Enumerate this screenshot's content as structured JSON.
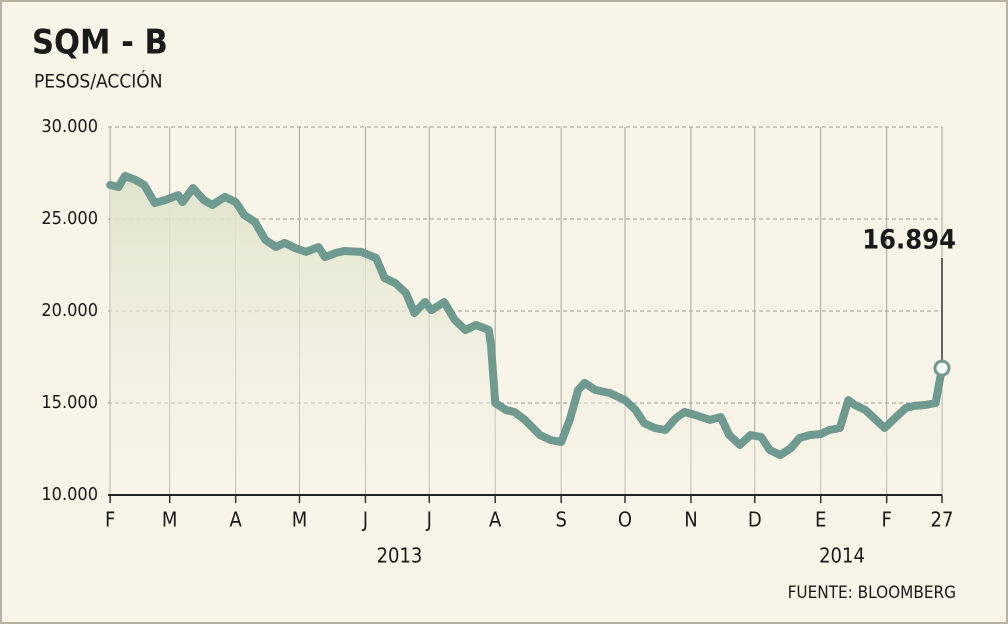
{
  "chart_data": {
    "type": "line",
    "title": "SQM - B",
    "subtitle": "PESOS/ACCIÓN",
    "source": "FUENTE: BLOOMBERG",
    "x": [
      0,
      4,
      7,
      12,
      16,
      21,
      26,
      32,
      34,
      39,
      44,
      48,
      54,
      59,
      63,
      68,
      73,
      78,
      82,
      87,
      92,
      98,
      101,
      106,
      110,
      118,
      125,
      129,
      134,
      139,
      143,
      148,
      151,
      157,
      162,
      167,
      172,
      178,
      179,
      181,
      186,
      190,
      195,
      202,
      207,
      212,
      216,
      220,
      223,
      228,
      235,
      242,
      247,
      251,
      256,
      261,
      266,
      270,
      275,
      282,
      287,
      291,
      296,
      301,
      306,
      310,
      315,
      320,
      324,
      329,
      334,
      338,
      343,
      347,
      350,
      355,
      360,
      364,
      369,
      374,
      378,
      383,
      388,
      391
    ],
    "series": [
      {
        "name": "SQM - B",
        "color": "#6f9a90",
        "values": [
          26850,
          26740,
          27340,
          27120,
          26850,
          25870,
          26030,
          26300,
          25920,
          26680,
          26030,
          25760,
          26200,
          25920,
          25220,
          24840,
          23860,
          23480,
          23700,
          23420,
          23210,
          23480,
          22930,
          23150,
          23260,
          23210,
          22880,
          21790,
          21520,
          20980,
          19890,
          20490,
          20050,
          20490,
          19510,
          18970,
          19240,
          18970,
          18150,
          15000,
          14620,
          14510,
          14080,
          13260,
          12990,
          12880,
          14080,
          15710,
          16090,
          15710,
          15540,
          15160,
          14620,
          13910,
          13640,
          13530,
          14190,
          14510,
          14350,
          14080,
          14240,
          13260,
          12720,
          13260,
          13150,
          12450,
          12170,
          12550,
          13100,
          13260,
          13310,
          13530,
          13640,
          15160,
          14890,
          14620,
          14080,
          13640,
          14190,
          14730,
          14840,
          14890,
          15000,
          16894
        ]
      }
    ],
    "annotation": {
      "text": "16.894",
      "x": 391,
      "y": 16894
    },
    "xlim": [
      -1,
      391
    ],
    "xticks": [
      {
        "value": 0,
        "label": "F"
      },
      {
        "value": 28,
        "label": "M"
      },
      {
        "value": 59,
        "label": "A"
      },
      {
        "value": 89,
        "label": "M"
      },
      {
        "value": 120,
        "label": "J"
      },
      {
        "value": 150,
        "label": "J"
      },
      {
        "value": 181,
        "label": "A"
      },
      {
        "value": 212,
        "label": "S"
      },
      {
        "value": 242,
        "label": "O"
      },
      {
        "value": 273,
        "label": "N"
      },
      {
        "value": 303,
        "label": "D"
      },
      {
        "value": 334,
        "label": "E"
      },
      {
        "value": 365,
        "label": "F"
      },
      {
        "value": 391,
        "label": "27"
      }
    ],
    "x_group_labels": [
      {
        "value": 136,
        "label": "2013"
      },
      {
        "value": 344,
        "label": "2014"
      }
    ],
    "ylim": [
      10000,
      30000
    ],
    "yticks": [
      {
        "value": 10000,
        "label": "10.000"
      },
      {
        "value": 15000,
        "label": "15.000"
      },
      {
        "value": 20000,
        "label": "20.000"
      },
      {
        "value": 25000,
        "label": "25.000"
      },
      {
        "value": 30000,
        "label": "30.000"
      }
    ],
    "grid": true
  }
}
